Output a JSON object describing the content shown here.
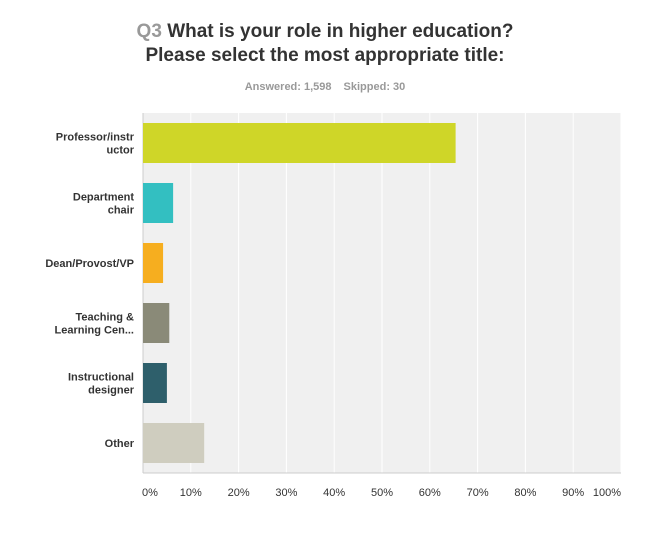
{
  "question_number": "Q3",
  "title_line1": "What is your role in higher education?",
  "title_line2": "Please select the most appropriate title:",
  "answered": "Answered: 1,598",
  "skipped": "Skipped: 30",
  "chart_data": {
    "type": "bar",
    "orientation": "horizontal",
    "categories": [
      [
        "Professor/instr",
        "uctor"
      ],
      [
        "Department",
        "chair"
      ],
      [
        "Dean/Provost/VP"
      ],
      [
        "Teaching &",
        "Learning Cen..."
      ],
      [
        "Instructional",
        "designer"
      ],
      [
        "Other"
      ]
    ],
    "values": [
      65.4,
      6.3,
      4.2,
      5.5,
      5.0,
      12.8
    ],
    "colors": [
      "#cfd628",
      "#33bfc1",
      "#f6ae1f",
      "#8a8a78",
      "#2e5f6b",
      "#cfcdbf"
    ],
    "xlim": [
      0,
      100
    ],
    "ticks": [
      "0%",
      "10%",
      "20%",
      "30%",
      "40%",
      "50%",
      "60%",
      "70%",
      "80%",
      "90%",
      "100%"
    ],
    "grid": true,
    "background": "#f0f0f0"
  }
}
